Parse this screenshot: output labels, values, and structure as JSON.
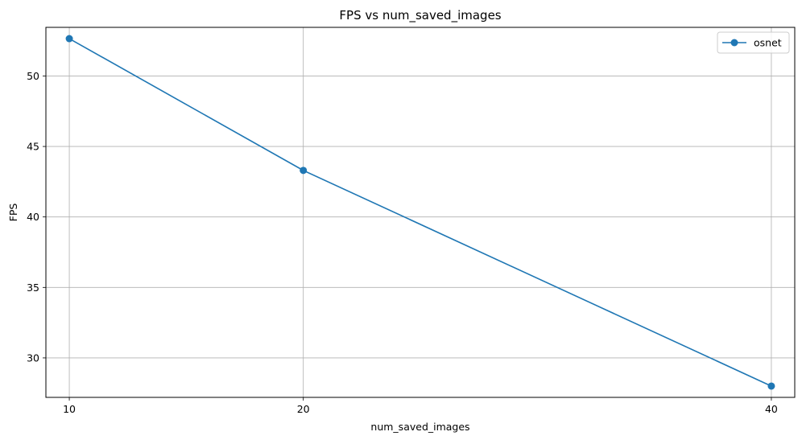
{
  "chart_data": {
    "type": "line",
    "title": "FPS vs num_saved_images",
    "xlabel": "num_saved_images",
    "ylabel": "FPS",
    "x": [
      10,
      20,
      40
    ],
    "x_ticks": [
      10,
      20,
      40
    ],
    "y_ticks": [
      30,
      35,
      40,
      45,
      50
    ],
    "xlim": [
      9,
      41
    ],
    "ylim": [
      27.2,
      53.45
    ],
    "grid": true,
    "legend": "top-right",
    "series": [
      {
        "name": "osnet",
        "color": "#1f77b4",
        "marker": "circle",
        "values": [
          52.65,
          43.3,
          28.0
        ]
      }
    ]
  }
}
